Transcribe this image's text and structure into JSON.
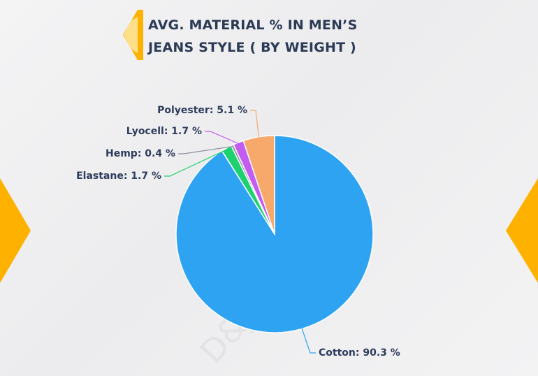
{
  "chart_data": {
    "type": "pie",
    "title": "AVG. MATERIAL % IN MEN’S JEANS STYLE ( BY WEIGHT )",
    "watermark": "D&J Reports",
    "values": [
      90.3,
      1.7,
      0.4,
      1.7,
      5.1
    ],
    "value_labels": [
      "Cotton: 90.3 %",
      "Elastane: 1.7 %",
      "Hemp: 0.4 %",
      "Lyocell: 1.7 %",
      "Polyester: 5.1 %"
    ],
    "colors": [
      "#2ea3f2",
      "#1ed170",
      "#8a8f99",
      "#c35cf0",
      "#f6a96b"
    ]
  }
}
